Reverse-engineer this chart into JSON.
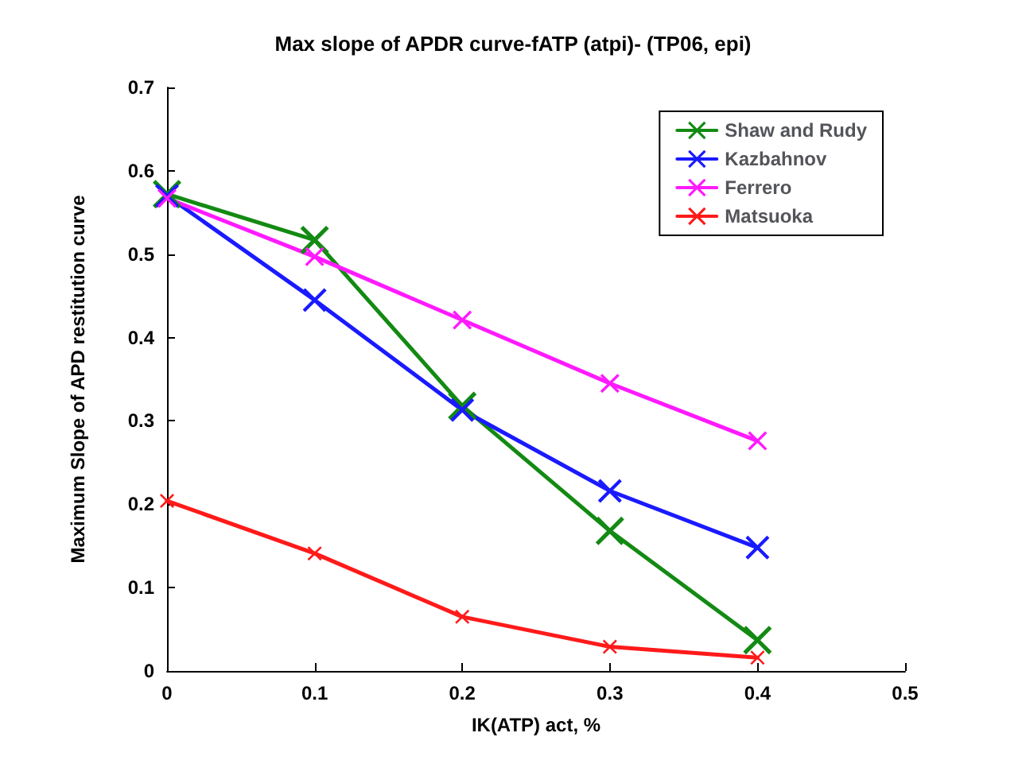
{
  "chart_data": {
    "type": "line",
    "title": "Max slope of APDR curve-fATP (atpi)- (TP06, epi)",
    "xlabel": "IK(ATP) act, %",
    "ylabel": "Maximum Slope of APD restitution curve",
    "x": [
      0,
      0.1,
      0.2,
      0.3,
      0.4
    ],
    "series": [
      {
        "name": "Shaw and Rudy",
        "color": "#138a13",
        "values": [
          0.572,
          0.517,
          0.318,
          0.168,
          0.037
        ]
      },
      {
        "name": "Kazbahnov",
        "color": "#1a1aff",
        "values": [
          0.57,
          0.445,
          0.313,
          0.216,
          0.148
        ]
      },
      {
        "name": "Ferrero",
        "color": "#ff1aff",
        "values": [
          0.567,
          0.497,
          0.421,
          0.345,
          0.276
        ]
      },
      {
        "name": "Matsuoka",
        "color": "#ff1a1a",
        "values": [
          0.204,
          0.141,
          0.065,
          0.029,
          0.016
        ]
      }
    ],
    "xlim": [
      0,
      0.5
    ],
    "xticks": [
      0,
      0.1,
      0.2,
      0.3,
      0.4,
      0.5
    ],
    "ylim": [
      0,
      0.7
    ],
    "yticks": [
      0,
      0.1,
      0.2,
      0.3,
      0.4,
      0.5,
      0.6,
      0.7
    ],
    "grid": false,
    "legend": "top right",
    "marker": "cross",
    "line_style": "solid"
  }
}
